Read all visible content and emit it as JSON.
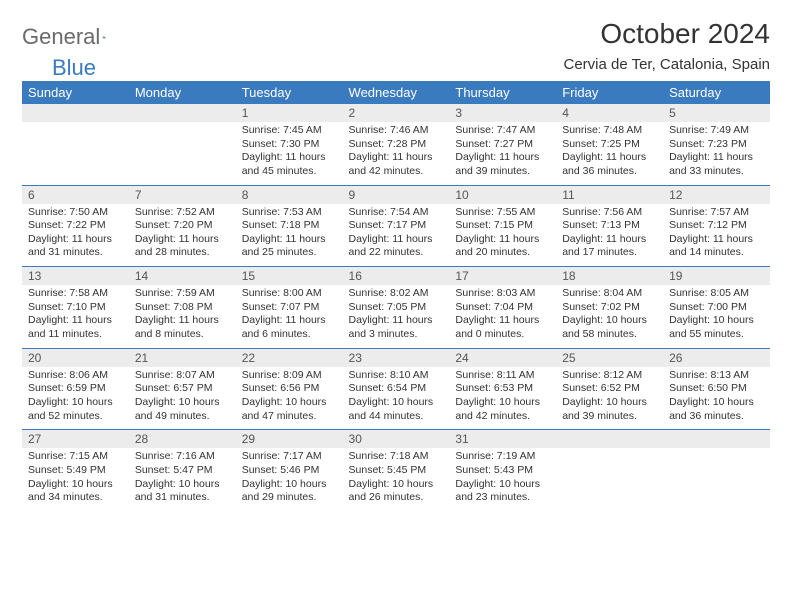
{
  "logo": {
    "text1": "General",
    "text2": "Blue"
  },
  "title": "October 2024",
  "subtitle": "Cervia de Ter, Catalonia, Spain",
  "colors": {
    "header_bg": "#3a7abf",
    "header_fg": "#ffffff",
    "daynum_bg": "#ececec",
    "text": "#333333",
    "logo_gray": "#6a6a6a",
    "logo_blue": "#3a7abf"
  },
  "dayHeaders": [
    "Sunday",
    "Monday",
    "Tuesday",
    "Wednesday",
    "Thursday",
    "Friday",
    "Saturday"
  ],
  "weeks": [
    [
      null,
      null,
      {
        "n": "1",
        "sr": "7:45 AM",
        "ss": "7:30 PM",
        "dl": "11 hours and 45 minutes."
      },
      {
        "n": "2",
        "sr": "7:46 AM",
        "ss": "7:28 PM",
        "dl": "11 hours and 42 minutes."
      },
      {
        "n": "3",
        "sr": "7:47 AM",
        "ss": "7:27 PM",
        "dl": "11 hours and 39 minutes."
      },
      {
        "n": "4",
        "sr": "7:48 AM",
        "ss": "7:25 PM",
        "dl": "11 hours and 36 minutes."
      },
      {
        "n": "5",
        "sr": "7:49 AM",
        "ss": "7:23 PM",
        "dl": "11 hours and 33 minutes."
      }
    ],
    [
      {
        "n": "6",
        "sr": "7:50 AM",
        "ss": "7:22 PM",
        "dl": "11 hours and 31 minutes."
      },
      {
        "n": "7",
        "sr": "7:52 AM",
        "ss": "7:20 PM",
        "dl": "11 hours and 28 minutes."
      },
      {
        "n": "8",
        "sr": "7:53 AM",
        "ss": "7:18 PM",
        "dl": "11 hours and 25 minutes."
      },
      {
        "n": "9",
        "sr": "7:54 AM",
        "ss": "7:17 PM",
        "dl": "11 hours and 22 minutes."
      },
      {
        "n": "10",
        "sr": "7:55 AM",
        "ss": "7:15 PM",
        "dl": "11 hours and 20 minutes."
      },
      {
        "n": "11",
        "sr": "7:56 AM",
        "ss": "7:13 PM",
        "dl": "11 hours and 17 minutes."
      },
      {
        "n": "12",
        "sr": "7:57 AM",
        "ss": "7:12 PM",
        "dl": "11 hours and 14 minutes."
      }
    ],
    [
      {
        "n": "13",
        "sr": "7:58 AM",
        "ss": "7:10 PM",
        "dl": "11 hours and 11 minutes."
      },
      {
        "n": "14",
        "sr": "7:59 AM",
        "ss": "7:08 PM",
        "dl": "11 hours and 8 minutes."
      },
      {
        "n": "15",
        "sr": "8:00 AM",
        "ss": "7:07 PM",
        "dl": "11 hours and 6 minutes."
      },
      {
        "n": "16",
        "sr": "8:02 AM",
        "ss": "7:05 PM",
        "dl": "11 hours and 3 minutes."
      },
      {
        "n": "17",
        "sr": "8:03 AM",
        "ss": "7:04 PM",
        "dl": "11 hours and 0 minutes."
      },
      {
        "n": "18",
        "sr": "8:04 AM",
        "ss": "7:02 PM",
        "dl": "10 hours and 58 minutes."
      },
      {
        "n": "19",
        "sr": "8:05 AM",
        "ss": "7:00 PM",
        "dl": "10 hours and 55 minutes."
      }
    ],
    [
      {
        "n": "20",
        "sr": "8:06 AM",
        "ss": "6:59 PM",
        "dl": "10 hours and 52 minutes."
      },
      {
        "n": "21",
        "sr": "8:07 AM",
        "ss": "6:57 PM",
        "dl": "10 hours and 49 minutes."
      },
      {
        "n": "22",
        "sr": "8:09 AM",
        "ss": "6:56 PM",
        "dl": "10 hours and 47 minutes."
      },
      {
        "n": "23",
        "sr": "8:10 AM",
        "ss": "6:54 PM",
        "dl": "10 hours and 44 minutes."
      },
      {
        "n": "24",
        "sr": "8:11 AM",
        "ss": "6:53 PM",
        "dl": "10 hours and 42 minutes."
      },
      {
        "n": "25",
        "sr": "8:12 AM",
        "ss": "6:52 PM",
        "dl": "10 hours and 39 minutes."
      },
      {
        "n": "26",
        "sr": "8:13 AM",
        "ss": "6:50 PM",
        "dl": "10 hours and 36 minutes."
      }
    ],
    [
      {
        "n": "27",
        "sr": "7:15 AM",
        "ss": "5:49 PM",
        "dl": "10 hours and 34 minutes."
      },
      {
        "n": "28",
        "sr": "7:16 AM",
        "ss": "5:47 PM",
        "dl": "10 hours and 31 minutes."
      },
      {
        "n": "29",
        "sr": "7:17 AM",
        "ss": "5:46 PM",
        "dl": "10 hours and 29 minutes."
      },
      {
        "n": "30",
        "sr": "7:18 AM",
        "ss": "5:45 PM",
        "dl": "10 hours and 26 minutes."
      },
      {
        "n": "31",
        "sr": "7:19 AM",
        "ss": "5:43 PM",
        "dl": "10 hours and 23 minutes."
      },
      null,
      null
    ]
  ],
  "labels": {
    "sunrise": "Sunrise:",
    "sunset": "Sunset:",
    "daylight": "Daylight:"
  }
}
